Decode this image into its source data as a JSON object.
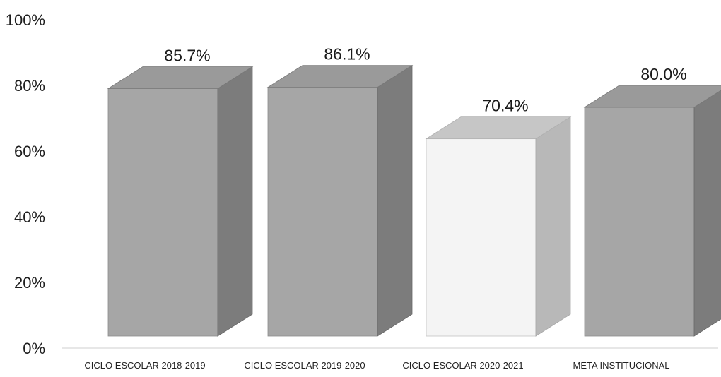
{
  "chart_data": {
    "type": "bar",
    "style": "3d",
    "categories": [
      "CICLO ESCOLAR 2018-2019",
      "CICLO ESCOLAR 2019-2020",
      "CICLO ESCOLAR 2020-2021",
      "META INSTITUCIONAL"
    ],
    "values": [
      85.7,
      86.1,
      70.4,
      80.0
    ],
    "value_labels": [
      "85.7%",
      "86.1%",
      "70.4%",
      "80.0%"
    ],
    "y_ticks": [
      "0%",
      "20%",
      "40%",
      "60%",
      "80%",
      "100%"
    ],
    "ylim": [
      0,
      100
    ],
    "grid": false,
    "legend": "none",
    "colors": {
      "bar_front": "#a6a6a6",
      "bar_side": "#7c7c7c",
      "bar_top": "#9a9a9a",
      "highlight_front": "#f4f4f4",
      "highlight_side": "#b8b8b8",
      "highlight_top": "#c6c6c6"
    },
    "highlight_index": 2
  }
}
